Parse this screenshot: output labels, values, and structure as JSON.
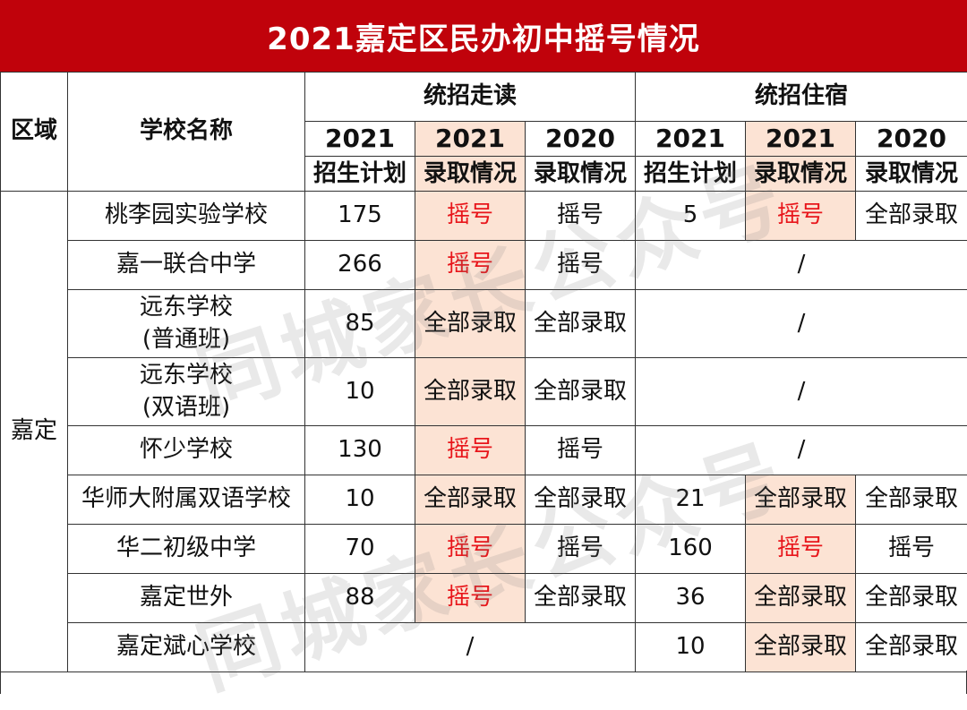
{
  "title": "2021嘉定区民办初中摇号情况",
  "header": {
    "region": "区域",
    "school": "学校名称",
    "group1": "统招走读",
    "group2": "统招住宿",
    "cols": [
      {
        "year": "2021",
        "label": "招生计划"
      },
      {
        "year": "2021",
        "label": "录取情况"
      },
      {
        "year": "2020",
        "label": "录取情况"
      },
      {
        "year": "2021",
        "label": "招生计划"
      },
      {
        "year": "2021",
        "label": "录取情况"
      },
      {
        "year": "2020",
        "label": "录取情况"
      }
    ]
  },
  "region_name": "嘉定",
  "rows": [
    {
      "school": [
        "桃李园实验学校"
      ],
      "d_plan": "175",
      "d_2021": "摇号",
      "d_2020": "摇号",
      "b_plan": "5",
      "b_2021": "摇号",
      "b_2020": "全部录取"
    },
    {
      "school": [
        "嘉一联合中学"
      ],
      "d_plan": "266",
      "d_2021": "摇号",
      "d_2020": "摇号",
      "b_merged": "/"
    },
    {
      "school": [
        "远东学校",
        "(普通班)"
      ],
      "d_plan": "85",
      "d_2021": "全部录取",
      "d_2020": "全部录取",
      "b_merged": "/"
    },
    {
      "school": [
        "远东学校",
        "(双语班)"
      ],
      "d_plan": "10",
      "d_2021": "全部录取",
      "d_2020": "全部录取",
      "b_merged": "/"
    },
    {
      "school": [
        "怀少学校"
      ],
      "d_plan": "130",
      "d_2021": "摇号",
      "d_2020": "摇号",
      "b_merged": "/"
    },
    {
      "school": [
        "华师大附属双语学校"
      ],
      "d_plan": "10",
      "d_2021": "全部录取",
      "d_2020": "全部录取",
      "b_plan": "21",
      "b_2021": "全部录取",
      "b_2020": "全部录取"
    },
    {
      "school": [
        "华二初级中学"
      ],
      "d_plan": "70",
      "d_2021": "摇号",
      "d_2020": "摇号",
      "b_plan": "160",
      "b_2021": "摇号",
      "b_2020": "摇号"
    },
    {
      "school": [
        "嘉定世外"
      ],
      "d_plan": "88",
      "d_2021": "摇号",
      "d_2020": "全部录取",
      "b_plan": "36",
      "b_2021": "全部录取",
      "b_2020": "全部录取"
    },
    {
      "school": [
        "嘉定斌心学校"
      ],
      "d_merged": "/",
      "b_plan": "10",
      "b_2021": "全部录取",
      "b_2020": "全部录取"
    }
  ],
  "watermark": "同城家长公众号",
  "colors": {
    "title_bg": "#c0020b",
    "highlight": "#fce3d4",
    "lottery_red": "#e8161b"
  }
}
